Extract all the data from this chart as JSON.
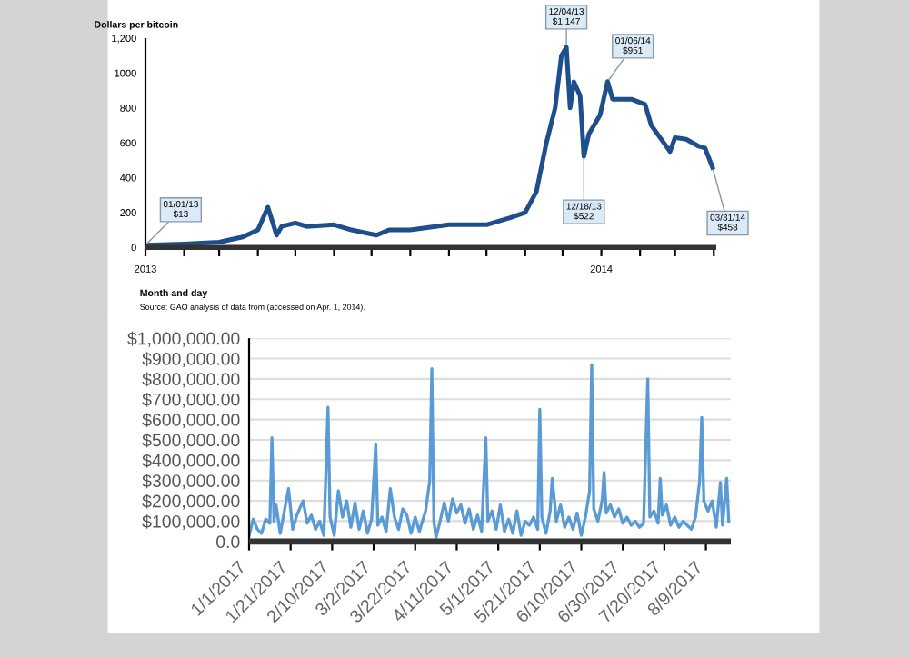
{
  "chart_data": [
    {
      "type": "line",
      "ylabel": "Dollars per bitcoin",
      "xlabel": "Month and day",
      "color": "#1f4e8c",
      "x": [
        "2013-01-01",
        "2013-02-01",
        "2013-03-01",
        "2013-03-20",
        "2013-04-01",
        "2013-04-09",
        "2013-04-16",
        "2013-04-20",
        "2013-05-01",
        "2013-05-10",
        "2013-06-01",
        "2013-06-15",
        "2013-07-05",
        "2013-07-15",
        "2013-08-01",
        "2013-09-01",
        "2013-10-01",
        "2013-10-20",
        "2013-11-01",
        "2013-11-10",
        "2013-11-18",
        "2013-11-25",
        "2013-11-30",
        "2013-12-04",
        "2013-12-07",
        "2013-12-10",
        "2013-12-15",
        "2013-12-18",
        "2013-12-22",
        "2013-12-31",
        "2014-01-06",
        "2014-01-10",
        "2014-01-25",
        "2014-02-05",
        "2014-02-10",
        "2014-02-20",
        "2014-02-25",
        "2014-03-01",
        "2014-03-10",
        "2014-03-20",
        "2014-03-25",
        "2014-03-31"
      ],
      "values": [
        13,
        20,
        30,
        60,
        100,
        230,
        70,
        120,
        140,
        120,
        130,
        100,
        70,
        100,
        100,
        130,
        130,
        170,
        200,
        320,
        600,
        800,
        1100,
        1147,
        800,
        950,
        870,
        522,
        650,
        760,
        951,
        850,
        850,
        820,
        700,
        600,
        550,
        630,
        620,
        580,
        570,
        458
      ],
      "xlim": [
        "2013-01-01",
        "2014-04-03"
      ],
      "ylim": [
        0,
        1200
      ],
      "yticks": [
        0,
        200,
        400,
        600,
        800,
        1000,
        {
          "value": 1200,
          "label": "1,200"
        }
      ],
      "xticks": [
        {
          "value": "2013-01-01",
          "label": "2013"
        },
        {
          "value": "2013-02-01",
          "label": null
        },
        {
          "value": "2013-03-01",
          "label": null
        },
        {
          "value": "2013-04-01",
          "label": null
        },
        {
          "value": "2013-05-01",
          "label": null
        },
        {
          "value": "2013-06-01",
          "label": null
        },
        {
          "value": "2013-07-01",
          "label": null
        },
        {
          "value": "2013-08-01",
          "label": null
        },
        {
          "value": "2013-09-01",
          "label": null
        },
        {
          "value": "2013-10-01",
          "label": null
        },
        {
          "value": "2013-11-01",
          "label": null
        },
        {
          "value": "2013-12-01",
          "label": null
        },
        {
          "value": "2014-01-01",
          "label": "2014"
        },
        {
          "value": "2014-02-01",
          "label": null
        },
        {
          "value": "2014-03-01",
          "label": null
        },
        {
          "value": "2014-04-01",
          "label": null
        }
      ],
      "annotations": [
        {
          "text": "01/01/13\n$13",
          "x": "2013-01-01",
          "y": 13
        },
        {
          "text": "12/04/13\n$1,147",
          "x": "2013-12-04",
          "y": 1147
        },
        {
          "text": "12/18/13\n$522",
          "x": "2013-12-18",
          "y": 522
        },
        {
          "text": "01/06/14\n$951",
          "x": "2014-01-06",
          "y": 951
        },
        {
          "text": "03/31/14\n$458",
          "x": "2014-03-31",
          "y": 458
        },
        "Source: GAO analysis of data from (accessed on Apr. 1, 2014)."
      ]
    },
    {
      "type": "line",
      "color": "#5b9bd5",
      "grid": "y",
      "x": [
        "2017-01-01",
        "2017-01-03",
        "2017-01-05",
        "2017-01-07",
        "2017-01-09",
        "2017-01-11",
        "2017-01-12",
        "2017-01-13",
        "2017-01-14",
        "2017-01-16",
        "2017-01-18",
        "2017-01-20",
        "2017-01-22",
        "2017-01-24",
        "2017-01-27",
        "2017-01-29",
        "2017-01-31",
        "2017-02-02",
        "2017-02-04",
        "2017-02-06",
        "2017-02-08",
        "2017-02-09",
        "2017-02-11",
        "2017-02-13",
        "2017-02-15",
        "2017-02-17",
        "2017-02-19",
        "2017-02-21",
        "2017-02-23",
        "2017-02-25",
        "2017-02-27",
        "2017-03-01",
        "2017-03-03",
        "2017-03-04",
        "2017-03-06",
        "2017-03-08",
        "2017-03-10",
        "2017-03-12",
        "2017-03-14",
        "2017-03-16",
        "2017-03-18",
        "2017-03-20",
        "2017-03-22",
        "2017-03-24",
        "2017-03-27",
        "2017-03-29",
        "2017-03-30",
        "2017-03-31",
        "2017-04-01",
        "2017-04-03",
        "2017-04-05",
        "2017-04-07",
        "2017-04-09",
        "2017-04-11",
        "2017-04-13",
        "2017-04-15",
        "2017-04-17",
        "2017-04-19",
        "2017-04-21",
        "2017-04-23",
        "2017-04-25",
        "2017-04-26",
        "2017-04-28",
        "2017-04-30",
        "2017-05-02",
        "2017-05-04",
        "2017-05-06",
        "2017-05-08",
        "2017-05-10",
        "2017-05-12",
        "2017-05-14",
        "2017-05-16",
        "2017-05-18",
        "2017-05-20",
        "2017-05-21",
        "2017-05-22",
        "2017-05-24",
        "2017-05-26",
        "2017-05-27",
        "2017-05-29",
        "2017-05-31",
        "2017-06-02",
        "2017-06-04",
        "2017-06-06",
        "2017-06-08",
        "2017-06-10",
        "2017-06-12",
        "2017-06-14",
        "2017-06-15",
        "2017-06-16",
        "2017-06-18",
        "2017-06-20",
        "2017-06-21",
        "2017-06-22",
        "2017-06-24",
        "2017-06-26",
        "2017-06-28",
        "2017-06-30",
        "2017-07-02",
        "2017-07-04",
        "2017-07-06",
        "2017-07-08",
        "2017-07-10",
        "2017-07-12",
        "2017-07-13",
        "2017-07-15",
        "2017-07-17",
        "2017-07-18",
        "2017-07-19",
        "2017-07-21",
        "2017-07-23",
        "2017-07-25",
        "2017-07-27",
        "2017-07-29",
        "2017-07-31",
        "2017-08-02",
        "2017-08-04",
        "2017-08-06",
        "2017-08-07",
        "2017-08-08",
        "2017-08-10",
        "2017-08-12",
        "2017-08-14",
        "2017-08-16",
        "2017-08-17",
        "2017-08-19",
        "2017-08-20"
      ],
      "values": [
        30000,
        110000,
        60000,
        40000,
        110000,
        90000,
        510000,
        100000,
        180000,
        40000,
        150000,
        260000,
        60000,
        130000,
        200000,
        90000,
        130000,
        60000,
        100000,
        30000,
        660000,
        120000,
        30000,
        250000,
        120000,
        200000,
        70000,
        190000,
        60000,
        150000,
        40000,
        110000,
        480000,
        80000,
        120000,
        50000,
        260000,
        120000,
        60000,
        160000,
        130000,
        40000,
        120000,
        50000,
        150000,
        300000,
        850000,
        100000,
        20000,
        100000,
        190000,
        100000,
        210000,
        140000,
        180000,
        90000,
        160000,
        60000,
        130000,
        50000,
        510000,
        100000,
        150000,
        60000,
        180000,
        50000,
        110000,
        40000,
        150000,
        30000,
        100000,
        80000,
        120000,
        60000,
        650000,
        120000,
        40000,
        150000,
        310000,
        100000,
        180000,
        70000,
        120000,
        60000,
        140000,
        30000,
        120000,
        250000,
        870000,
        160000,
        100000,
        200000,
        340000,
        140000,
        180000,
        120000,
        160000,
        90000,
        120000,
        80000,
        100000,
        70000,
        90000,
        800000,
        120000,
        150000,
        90000,
        310000,
        130000,
        180000,
        80000,
        120000,
        70000,
        100000,
        80000,
        60000,
        120000,
        300000,
        610000,
        200000,
        150000,
        200000,
        70000,
        290000,
        80000,
        310000,
        100000
      ],
      "xlim": [
        "2017-01-01",
        "2017-08-21"
      ],
      "ylim": [
        0,
        1000000
      ],
      "yticks": [
        {
          "value": 0,
          "label": "0.0"
        },
        {
          "value": 100000,
          "label": "$100,000.00"
        },
        {
          "value": 200000,
          "label": "$200,000.00"
        },
        {
          "value": 300000,
          "label": "$300,000.00"
        },
        {
          "value": 400000,
          "label": "$400,000.00"
        },
        {
          "value": 500000,
          "label": "$500,000.00"
        },
        {
          "value": 600000,
          "label": "$600,000.00"
        },
        {
          "value": 700000,
          "label": "$700,000.00"
        },
        {
          "value": 800000,
          "label": "$800,000.00"
        },
        {
          "value": 900000,
          "label": "$900,000.00"
        },
        {
          "value": 1000000,
          "label": "$1,000,000.00"
        }
      ],
      "xticks": [
        {
          "value": "2017-01-01",
          "label": "1/1/2017"
        },
        {
          "value": "2017-01-21",
          "label": "1/21/2017"
        },
        {
          "value": "2017-02-10",
          "label": "2/10/2017"
        },
        {
          "value": "2017-03-02",
          "label": "3/2/2017"
        },
        {
          "value": "2017-03-22",
          "label": "3/22/2017"
        },
        {
          "value": "2017-04-11",
          "label": "4/11/2017"
        },
        {
          "value": "2017-05-01",
          "label": "5/1/2017"
        },
        {
          "value": "2017-05-21",
          "label": "5/21/2017"
        },
        {
          "value": "2017-06-10",
          "label": "6/10/2017"
        },
        {
          "value": "2017-06-30",
          "label": "6/30/2017"
        },
        {
          "value": "2017-07-20",
          "label": "7/20/2017"
        },
        {
          "value": "2017-08-09",
          "label": "8/9/2017"
        }
      ]
    }
  ]
}
